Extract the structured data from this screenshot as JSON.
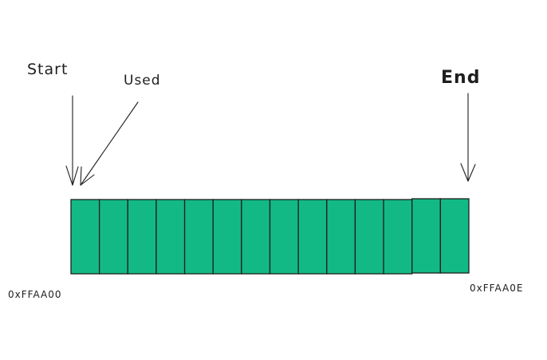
{
  "labels": {
    "start": "Start",
    "used": "Used",
    "end": "End"
  },
  "addresses": {
    "start": "0xFFAA00",
    "end": "0xFFAA0E"
  },
  "buffer": {
    "cell_count": 14,
    "cell_color": "#13b985",
    "outline_color": "#1e1e1e"
  },
  "arrows": [
    {
      "name": "start-arrow",
      "target": "start"
    },
    {
      "name": "used-arrow",
      "target": "start"
    },
    {
      "name": "end-arrow",
      "target": "end"
    }
  ]
}
